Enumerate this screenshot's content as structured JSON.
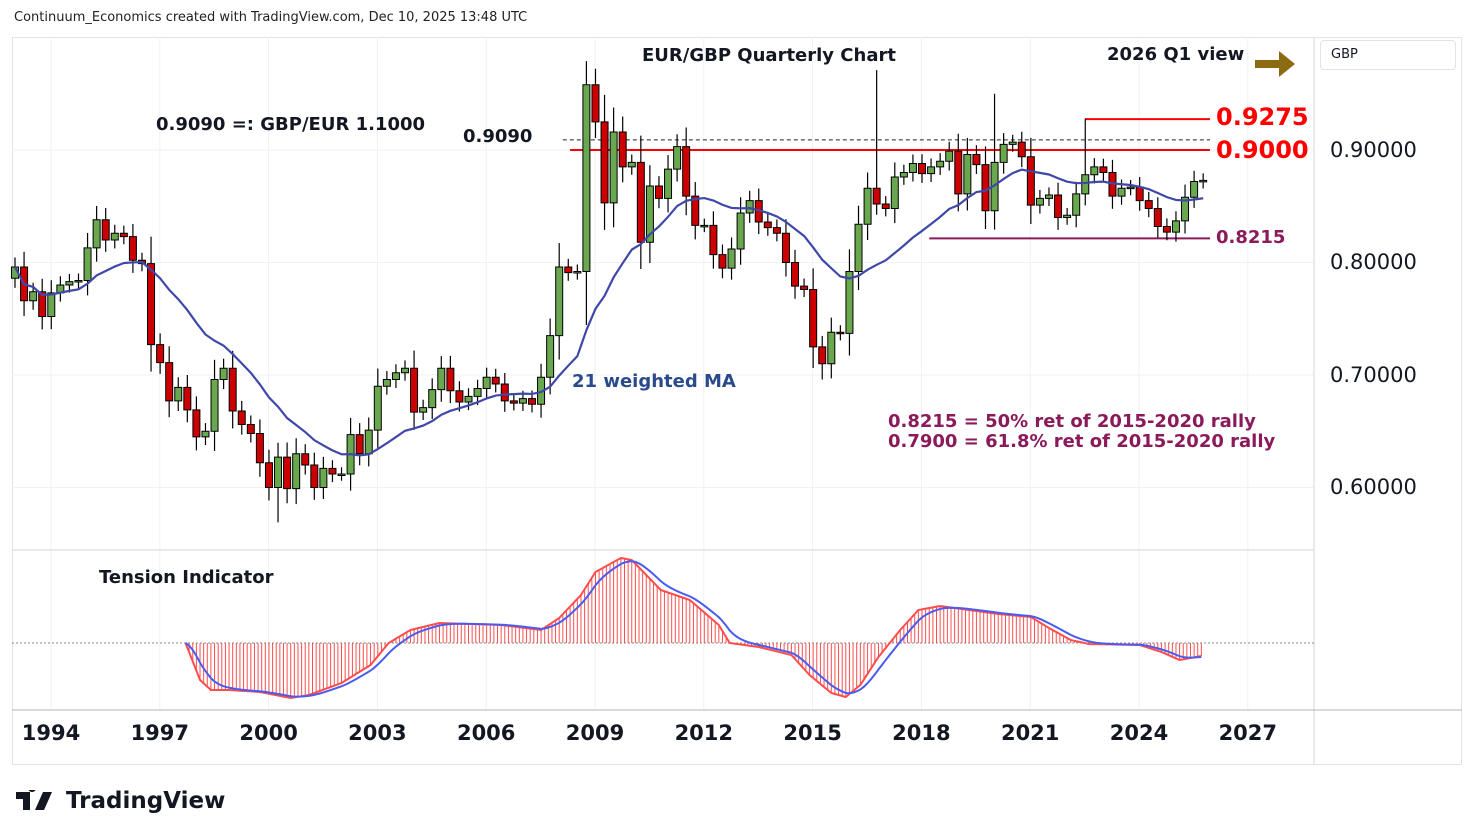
{
  "header": {
    "caption": "Continuum_Economics created with TradingView.com, Dec 10, 2025 13:48 UTC"
  },
  "currency_label": "GBP",
  "logo_text": "TradingView",
  "colors": {
    "up": "#6aa84f",
    "down": "#cc0000",
    "ma": "#3f48a8",
    "resistance": "#ff0000",
    "support": "#8b1a5a",
    "arrow": "#8b6a12",
    "tension_red": "#ff4d4d",
    "tension_blue": "#4a5cf0"
  },
  "chart_data": {
    "type": "candlestick",
    "title": "EUR/GBP Quarterly Chart",
    "subtitle": "2026 Q1 view",
    "start_quarter": "1993Q1",
    "first_open": 0.786,
    "closes": [
      0.796,
      0.766,
      0.774,
      0.752,
      0.773,
      0.78,
      0.783,
      0.784,
      0.813,
      0.838,
      0.82,
      0.826,
      0.823,
      0.802,
      0.799,
      0.727,
      0.711,
      0.677,
      0.689,
      0.669,
      0.645,
      0.65,
      0.696,
      0.706,
      0.668,
      0.656,
      0.648,
      0.622,
      0.6,
      0.627,
      0.599,
      0.63,
      0.62,
      0.6,
      0.617,
      0.612,
      0.612,
      0.647,
      0.63,
      0.651,
      0.69,
      0.696,
      0.702,
      0.706,
      0.667,
      0.671,
      0.687,
      0.706,
      0.686,
      0.676,
      0.681,
      0.688,
      0.698,
      0.692,
      0.677,
      0.675,
      0.679,
      0.674,
      0.698,
      0.735,
      0.796,
      0.791,
      0.792,
      0.958,
      0.925,
      0.853,
      0.916,
      0.885,
      0.889,
      0.818,
      0.868,
      0.857,
      0.883,
      0.903,
      0.859,
      0.833,
      0.833,
      0.807,
      0.795,
      0.812,
      0.844,
      0.855,
      0.836,
      0.831,
      0.826,
      0.8,
      0.779,
      0.776,
      0.725,
      0.71,
      0.738,
      0.737,
      0.792,
      0.834,
      0.866,
      0.852,
      0.848,
      0.876,
      0.88,
      0.888,
      0.879,
      0.885,
      0.89,
      0.899,
      0.861,
      0.896,
      0.887,
      0.846,
      0.889,
      0.905,
      0.907,
      0.894,
      0.851,
      0.857,
      0.86,
      0.84,
      0.842,
      0.861,
      0.878,
      0.885,
      0.88,
      0.859,
      0.866,
      0.867,
      0.855,
      0.848,
      0.832,
      0.827,
      0.837,
      0.858,
      0.872,
      0.873
    ],
    "extreme_overrides": [
      {
        "quarter": "2008Q4",
        "high": 0.979
      },
      {
        "quarter": "2016Q4",
        "high": 0.971
      },
      {
        "quarter": "2020Q1",
        "high": 0.95
      },
      {
        "quarter": "2022Q3",
        "high": 0.928
      },
      {
        "quarter": "2000Q2",
        "low": 0.569
      },
      {
        "quarter": "2015Q2",
        "low": 0.696
      }
    ],
    "moving_average": {
      "label": "21 weighted MA",
      "period": 21,
      "type": "weighted"
    },
    "yaxis": {
      "ticks": [
        "0.90000",
        "0.80000",
        "0.70000",
        "0.60000"
      ],
      "tick_values": [
        0.9,
        0.8,
        0.7,
        0.6
      ]
    },
    "xaxis": {
      "ticks": [
        "1994",
        "1997",
        "2000",
        "2003",
        "2006",
        "2009",
        "2012",
        "2015",
        "2018",
        "2021",
        "2024",
        "2027"
      ]
    },
    "levels": [
      {
        "value": 0.9275,
        "label": "0.9275",
        "style": "resistance",
        "from_year": 2022.5
      },
      {
        "value": 0.9,
        "label": "0.9000",
        "style": "resistance",
        "from_year": 2008.3
      },
      {
        "value": 0.909,
        "label": "0.9090",
        "style": "dashed",
        "from_year": 2008.1
      },
      {
        "value": 0.8215,
        "label": "0.8215",
        "style": "support",
        "from_year": 2018.2
      }
    ],
    "annotations": {
      "parity_note": "0.9090 =: GBP/EUR 1.1000",
      "ret_50": "0.8215 = 50% ret of 2015-2020 rally",
      "ret_618": "0.7900 = 61.8% ret of 2015-2020 rally"
    },
    "indicator": {
      "title": "Tension Indicator",
      "points": [
        [
          1997.7,
          0
        ],
        [
          1998.1,
          -3.7
        ],
        [
          1998.4,
          -4.7
        ],
        [
          1998.9,
          -4.7
        ],
        [
          1999.75,
          -4.9
        ],
        [
          2000.6,
          -5.5
        ],
        [
          2001.1,
          -5.2
        ],
        [
          2002.0,
          -4.0
        ],
        [
          2002.8,
          -2.2
        ],
        [
          2003.3,
          0
        ],
        [
          2003.9,
          1.3
        ],
        [
          2004.7,
          2.0
        ],
        [
          2006.4,
          1.8
        ],
        [
          2007.5,
          1.3
        ],
        [
          2008.0,
          2.5
        ],
        [
          2008.6,
          4.8
        ],
        [
          2009.0,
          7.1
        ],
        [
          2009.7,
          8.5
        ],
        [
          2010.0,
          8.3
        ],
        [
          2010.8,
          5.3
        ],
        [
          2011.6,
          4.3
        ],
        [
          2012.4,
          1.8
        ],
        [
          2012.7,
          0
        ],
        [
          2013.5,
          -0.4
        ],
        [
          2014.4,
          -1.2
        ],
        [
          2014.9,
          -3.2
        ],
        [
          2015.5,
          -5.0
        ],
        [
          2015.9,
          -5.4
        ],
        [
          2016.3,
          -4.2
        ],
        [
          2016.8,
          -1.4
        ],
        [
          2017.4,
          1.3
        ],
        [
          2017.9,
          3.3
        ],
        [
          2018.5,
          3.7
        ],
        [
          2019.3,
          3.3
        ],
        [
          2020.1,
          2.9
        ],
        [
          2021.0,
          2.6
        ],
        [
          2021.5,
          1.5
        ],
        [
          2022.1,
          0.3
        ],
        [
          2022.6,
          -0.1
        ],
        [
          2024.0,
          -0.2
        ],
        [
          2024.6,
          -0.9
        ],
        [
          2025.1,
          -1.7
        ],
        [
          2025.7,
          -1.3
        ]
      ]
    }
  }
}
